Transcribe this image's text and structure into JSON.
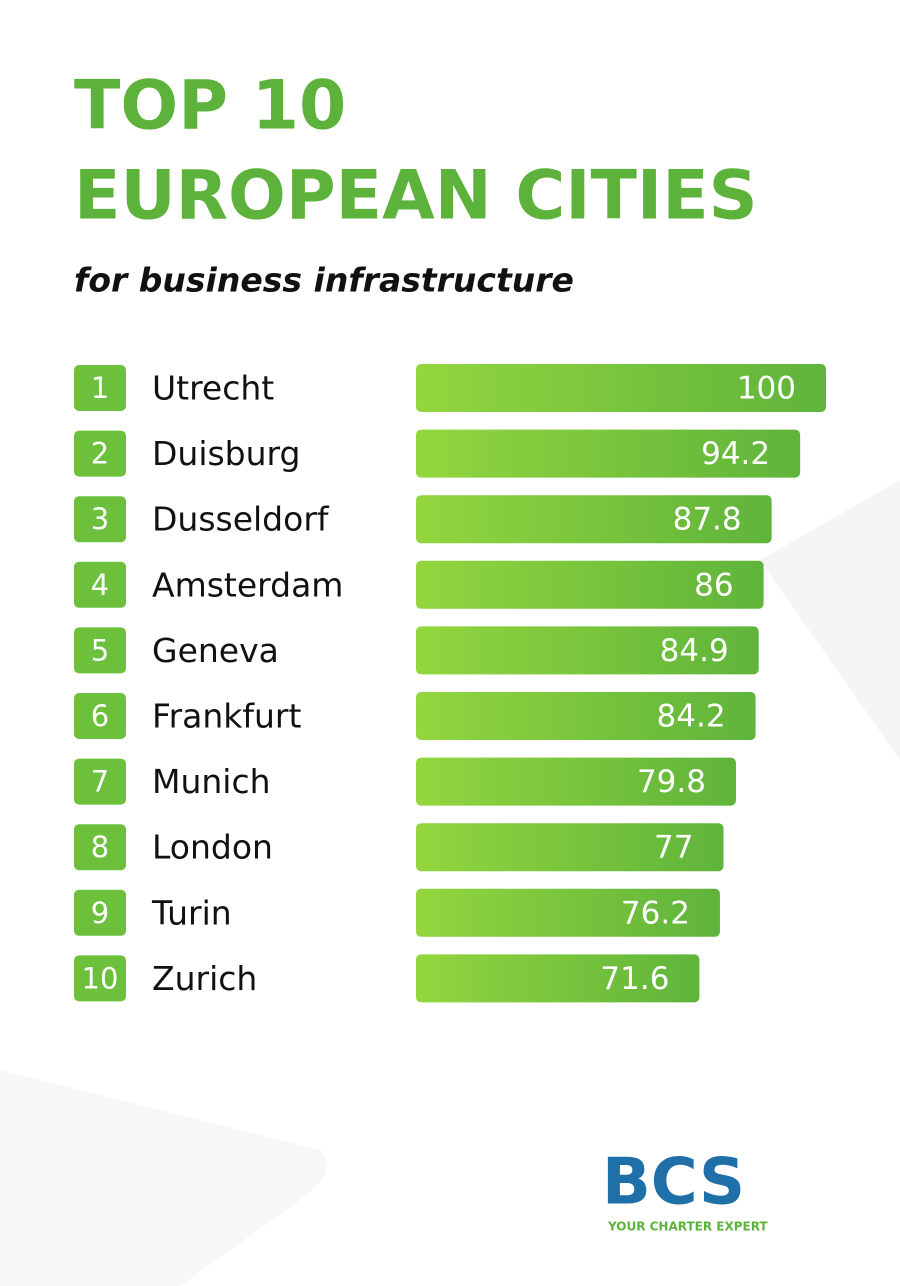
{
  "chart_data": {
    "type": "bar",
    "orientation": "horizontal",
    "title": [
      "TOP 10",
      "EUROPEAN CITIES"
    ],
    "subtitle": "for business infrastructure",
    "ranks": [
      1,
      2,
      3,
      4,
      5,
      6,
      7,
      8,
      9,
      10
    ],
    "categories": [
      "Utrecht",
      "Duisburg",
      "Dusseldorf",
      "Amsterdam",
      "Geneva",
      "Frankfurt",
      "Munich",
      "London",
      "Turin",
      "Zurich"
    ],
    "values": [
      100,
      94.2,
      87.8,
      86,
      84.9,
      84.2,
      79.8,
      77,
      76.2,
      71.6
    ],
    "xlim": [
      8,
      100
    ],
    "color": "#6cc03c",
    "logo": {
      "name": "BCS",
      "tagline": "YOUR CHARTER EXPERT"
    }
  }
}
